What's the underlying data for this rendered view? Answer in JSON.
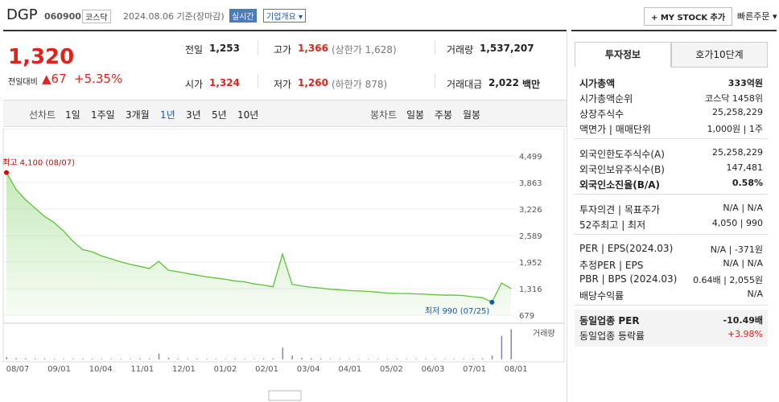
{
  "header": {
    "name": "DGP",
    "code": "060900",
    "market": "코스닥",
    "date": "2024.08.06 기준(장마감)",
    "realtime": "실시간",
    "overview": "기업개요 ▾",
    "mystock": "+ MY STOCK 추가",
    "quick": "빠른주문 ▾"
  },
  "quote": {
    "price": "1,320",
    "change_label": "전일대비",
    "change": "▲67",
    "rate": "+5.35%",
    "cells": [
      {
        "label": "전일",
        "value": "1,253",
        "note": ""
      },
      {
        "label": "고가",
        "value": "1,366",
        "note": "(상한가 1,628)"
      },
      {
        "label": "거래량",
        "value": "1,537,207",
        "note": ""
      },
      {
        "label": "시가",
        "value": "1,324",
        "note": ""
      },
      {
        "label": "저가",
        "value": "1,260",
        "note": "(하한가 878)"
      },
      {
        "label": "거래대금",
        "value": "2,022",
        "note": "백만"
      }
    ]
  },
  "tabs": {
    "line_label": "선차트",
    "line": [
      "1일",
      "1주일",
      "3개월",
      "1년",
      "3년",
      "5년",
      "10년"
    ],
    "candle_label": "봉차트",
    "candle": [
      "일봉",
      "주봉",
      "월봉"
    ]
  },
  "chart": {
    "type": "area",
    "ylim": [
      679,
      4499
    ],
    "yticks": [
      {
        "value": 4499,
        "label": "4,499"
      },
      {
        "value": 3863,
        "label": "3,863"
      },
      {
        "value": 3226,
        "label": "3,226"
      },
      {
        "value": 2589,
        "label": "2,589"
      },
      {
        "value": 1952,
        "label": "1,952"
      },
      {
        "value": 1316,
        "label": "1,316"
      },
      {
        "value": 679,
        "label": "679"
      }
    ],
    "xtick_labels": [
      "08/07",
      "09/01",
      "10/04",
      "11/01",
      "12/01",
      "01/02",
      "02/01",
      "03/04",
      "04/01",
      "05/02",
      "06/03",
      "07/01",
      "08/01"
    ],
    "values": [
      4100,
      3700,
      3450,
      3250,
      3050,
      2900,
      2700,
      2450,
      2250,
      2200,
      2100,
      2030,
      1960,
      1900,
      1850,
      1800,
      1970,
      1760,
      1720,
      1680,
      1640,
      1600,
      1570,
      1540,
      1500,
      1480,
      1430,
      1400,
      1360,
      2145,
      1420,
      1380,
      1350,
      1330,
      1300,
      1290,
      1270,
      1260,
      1250,
      1230,
      1210,
      1200,
      1200,
      1190,
      1180,
      1170,
      1160,
      1160,
      1150,
      1120,
      1100,
      990,
      1451,
      1320
    ],
    "volume": [
      120000,
      60000,
      50000,
      40000,
      40000,
      30000,
      30000,
      30000,
      40000,
      30000,
      30000,
      30000,
      30000,
      30000,
      40000,
      50000,
      300000,
      80000,
      40000,
      30000,
      30000,
      30000,
      30000,
      30000,
      40000,
      30000,
      30000,
      40000,
      50000,
      600000,
      200000,
      80000,
      60000,
      40000,
      30000,
      30000,
      30000,
      30000,
      30000,
      30000,
      30000,
      30000,
      30000,
      30000,
      30000,
      30000,
      30000,
      30000,
      30000,
      40000,
      50000,
      200000,
      1200000,
      1537207
    ],
    "volume_lim": [
      0,
      1600000
    ],
    "color": "#5cc33a",
    "high_label": "최고 4,100 (08/07)",
    "low_label": "최저 990 (07/25)",
    "volume_label": "거래량"
  },
  "panel": {
    "tabs": [
      "투자정보",
      "호가10단계"
    ],
    "sections": [
      [
        {
          "label": "시가총액",
          "value": "333억원"
        },
        {
          "label": "시가총액순위",
          "value": "코스닥 1458위"
        },
        {
          "label": "상장주식수",
          "value": "25,258,229"
        },
        {
          "label": "액면가 | 매매단위",
          "value": "1,000원 | 1주"
        }
      ],
      [
        {
          "label": "외국인한도주식수(A)",
          "value": "25,258,229"
        },
        {
          "label": "외국인보유주식수(B)",
          "value": "147,481"
        },
        {
          "label": "외국인소진율(B/A)",
          "value": "0.58%"
        }
      ],
      [
        {
          "label": "투자의견 | 목표주가",
          "value": "N/A | N/A"
        },
        {
          "label": "52주최고 | 최저",
          "value": "4,050 | 990"
        }
      ],
      [
        {
          "label": "PER | EPS(2024.03)",
          "value": "N/A | -371원"
        },
        {
          "label": "추정PER | EPS",
          "value": "N/A | N/A"
        },
        {
          "label": "PBR | BPS (2024.03)",
          "value": "0.64배 | 2,055원"
        },
        {
          "label": "배당수익률",
          "value": "N/A"
        }
      ],
      [
        {
          "label": "동일업종 PER",
          "value": "-10.49배"
        },
        {
          "label": "동일업종 등락률",
          "value": "+3.98%"
        }
      ]
    ]
  }
}
